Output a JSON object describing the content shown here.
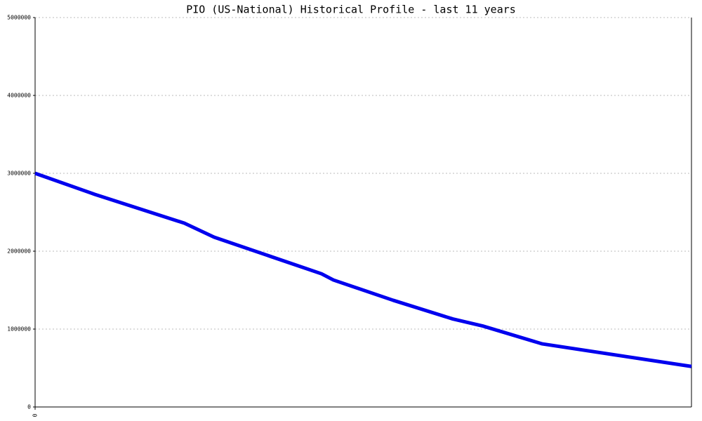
{
  "chart_data": {
    "type": "line",
    "title": "PIO (US-National) Historical Profile - last 11 years",
    "x": [
      0,
      1,
      2.5,
      3,
      4.8,
      5,
      6,
      7,
      7.5,
      8.5,
      11
    ],
    "xlim": [
      0,
      11
    ],
    "xticks": [
      0
    ],
    "series": [
      {
        "color": "#0000ee",
        "values": [
          3000000,
          2730000,
          2360000,
          2180000,
          1710000,
          1630000,
          1370000,
          1130000,
          1040000,
          810000,
          520000
        ]
      }
    ],
    "ylim": [
      0,
      5000000
    ],
    "yticks": [
      0,
      1000000,
      2000000,
      3000000,
      4000000,
      5000000
    ],
    "grid": true
  }
}
